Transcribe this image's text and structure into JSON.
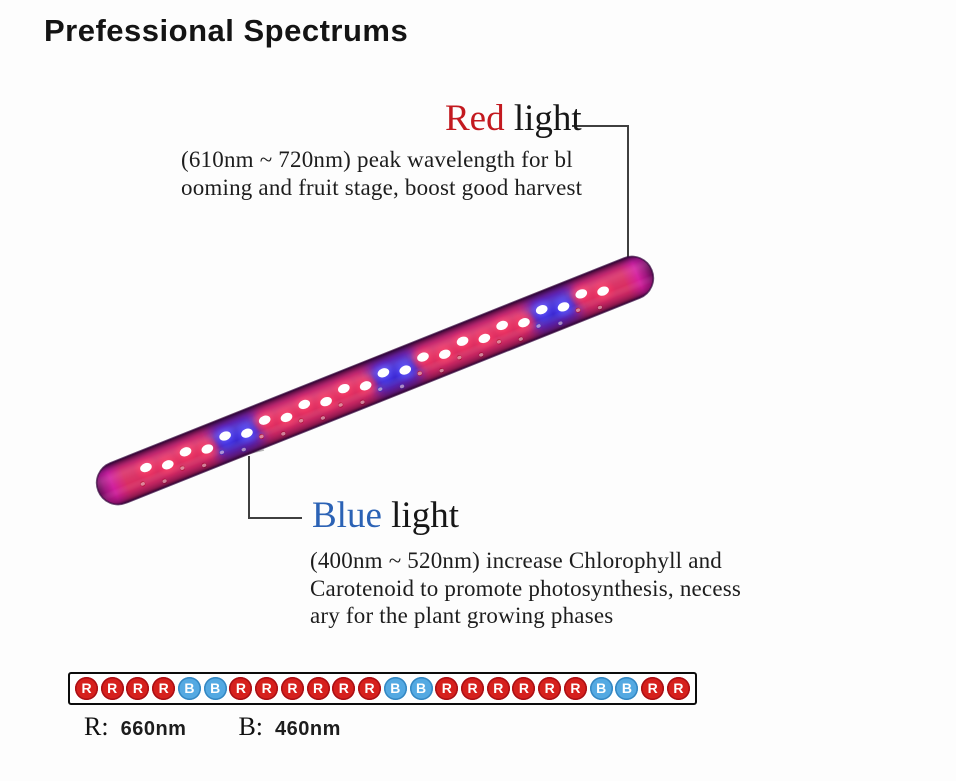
{
  "title": "Prefessional Spectrums",
  "annotations": {
    "red": {
      "heading_colored": "Red",
      "heading_rest": " light",
      "desc_lines": [
        "(610nm ~ 720nm) peak wavelength for bl",
        "ooming and fruit stage, boost good harvest"
      ]
    },
    "blue": {
      "heading_colored": "Blue",
      "heading_rest": " light",
      "desc_lines": [
        "(400nm ~ 520nm) increase Chlorophyll and",
        "Carotenoid to promote photosynthesis, necess",
        "ary for the plant growing phases"
      ]
    }
  },
  "strip": {
    "pattern": [
      "R",
      "R",
      "R",
      "R",
      "B",
      "B",
      "R",
      "R",
      "R",
      "R",
      "R",
      "R",
      "B",
      "B",
      "R",
      "R",
      "R",
      "R",
      "R",
      "R",
      "B",
      "B",
      "R",
      "R"
    ]
  },
  "legend": [
    {
      "label": "R:",
      "value": "660nm"
    },
    {
      "label": "B:",
      "value": "460nm"
    }
  ],
  "colors": {
    "red_text": "#c3191f",
    "blue_text": "#2b62b5",
    "red_circle": "#d6201d",
    "blue_circle": "#54a9e2",
    "tube_red": "#d92e62",
    "tube_blue": "#2e28d6",
    "tube_magenta": "#d01d9c",
    "leader_line": "#3f3f3f"
  }
}
